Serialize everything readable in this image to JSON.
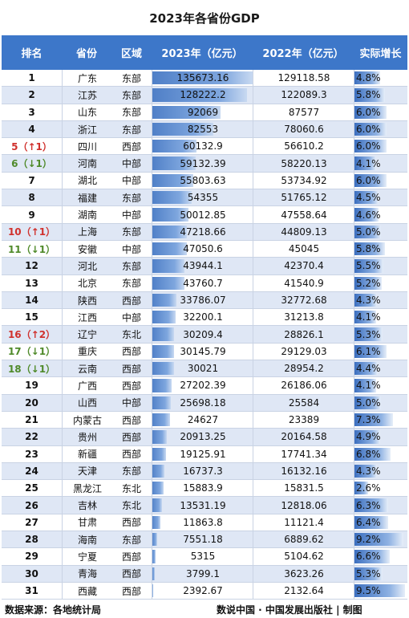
{
  "title": "2023年各省份GDP",
  "headers": {
    "rank": "排名",
    "province": "省份",
    "region": "区域",
    "gdp2023": "2023年（亿元）",
    "gdp2022": "2022年（亿元）",
    "growth": "实际增长"
  },
  "rows": [
    {
      "rank": "1",
      "province": "广东",
      "region": "东部",
      "gdp2023": "135673.16",
      "gdp2022": "129118.58",
      "growth": "4.8%",
      "v23": 135673.16,
      "g": 4.8,
      "change": ""
    },
    {
      "rank": "2",
      "province": "江苏",
      "region": "东部",
      "gdp2023": "128222.2",
      "gdp2022": "122089.3",
      "growth": "5.8%",
      "v23": 128222.2,
      "g": 5.8,
      "change": ""
    },
    {
      "rank": "3",
      "province": "山东",
      "region": "东部",
      "gdp2023": "92069",
      "gdp2022": "87577",
      "growth": "6.0%",
      "v23": 92069,
      "g": 6.0,
      "change": ""
    },
    {
      "rank": "4",
      "province": "浙江",
      "region": "东部",
      "gdp2023": "82553",
      "gdp2022": "78060.6",
      "growth": "6.0%",
      "v23": 82553,
      "g": 6.0,
      "change": ""
    },
    {
      "rank": "5（↑1）",
      "province": "四川",
      "region": "西部",
      "gdp2023": "60132.9",
      "gdp2022": "56610.2",
      "growth": "6.0%",
      "v23": 60132.9,
      "g": 6.0,
      "change": "up"
    },
    {
      "rank": "6（↓1）",
      "province": "河南",
      "region": "中部",
      "gdp2023": "59132.39",
      "gdp2022": "58220.13",
      "growth": "4.1%",
      "v23": 59132.39,
      "g": 4.1,
      "change": "down"
    },
    {
      "rank": "7",
      "province": "湖北",
      "region": "中部",
      "gdp2023": "55803.63",
      "gdp2022": "53734.92",
      "growth": "6.0%",
      "v23": 55803.63,
      "g": 6.0,
      "change": ""
    },
    {
      "rank": "8",
      "province": "福建",
      "region": "东部",
      "gdp2023": "54355",
      "gdp2022": "51765.12",
      "growth": "4.5%",
      "v23": 54355,
      "g": 4.5,
      "change": ""
    },
    {
      "rank": "9",
      "province": "湖南",
      "region": "中部",
      "gdp2023": "50012.85",
      "gdp2022": "47558.64",
      "growth": "4.6%",
      "v23": 50012.85,
      "g": 4.6,
      "change": ""
    },
    {
      "rank": "10（↑1）",
      "province": "上海",
      "region": "东部",
      "gdp2023": "47218.66",
      "gdp2022": "44809.13",
      "growth": "5.0%",
      "v23": 47218.66,
      "g": 5.0,
      "change": "up"
    },
    {
      "rank": "11（↓1）",
      "province": "安徽",
      "region": "中部",
      "gdp2023": "47050.6",
      "gdp2022": "45045",
      "growth": "5.8%",
      "v23": 47050.6,
      "g": 5.8,
      "change": "down"
    },
    {
      "rank": "12",
      "province": "河北",
      "region": "东部",
      "gdp2023": "43944.1",
      "gdp2022": "42370.4",
      "growth": "5.5%",
      "v23": 43944.1,
      "g": 5.5,
      "change": ""
    },
    {
      "rank": "13",
      "province": "北京",
      "region": "东部",
      "gdp2023": "43760.7",
      "gdp2022": "41540.9",
      "growth": "5.2%",
      "v23": 43760.7,
      "g": 5.2,
      "change": ""
    },
    {
      "rank": "14",
      "province": "陕西",
      "region": "西部",
      "gdp2023": "33786.07",
      "gdp2022": "32772.68",
      "growth": "4.3%",
      "v23": 33786.07,
      "g": 4.3,
      "change": ""
    },
    {
      "rank": "15",
      "province": "江西",
      "region": "中部",
      "gdp2023": "32200.1",
      "gdp2022": "31213.8",
      "growth": "4.1%",
      "v23": 32200.1,
      "g": 4.1,
      "change": ""
    },
    {
      "rank": "16（↑2）",
      "province": "辽宁",
      "region": "东北",
      "gdp2023": "30209.4",
      "gdp2022": "28826.1",
      "growth": "5.3%",
      "v23": 30209.4,
      "g": 5.3,
      "change": "up"
    },
    {
      "rank": "17（↓1）",
      "province": "重庆",
      "region": "西部",
      "gdp2023": "30145.79",
      "gdp2022": "29129.03",
      "growth": "6.1%",
      "v23": 30145.79,
      "g": 6.1,
      "change": "down"
    },
    {
      "rank": "18（↓1）",
      "province": "云南",
      "region": "西部",
      "gdp2023": "30021",
      "gdp2022": "28954.2",
      "growth": "4.4%",
      "v23": 30021,
      "g": 4.4,
      "change": "down"
    },
    {
      "rank": "19",
      "province": "广西",
      "region": "西部",
      "gdp2023": "27202.39",
      "gdp2022": "26186.06",
      "growth": "4.1%",
      "v23": 27202.39,
      "g": 4.1,
      "change": ""
    },
    {
      "rank": "20",
      "province": "山西",
      "region": "中部",
      "gdp2023": "25698.18",
      "gdp2022": "25584",
      "growth": "5.0%",
      "v23": 25698.18,
      "g": 5.0,
      "change": ""
    },
    {
      "rank": "21",
      "province": "内蒙古",
      "region": "西部",
      "gdp2023": "24627",
      "gdp2022": "23389",
      "growth": "7.3%",
      "v23": 24627,
      "g": 7.3,
      "change": ""
    },
    {
      "rank": "22",
      "province": "贵州",
      "region": "西部",
      "gdp2023": "20913.25",
      "gdp2022": "20164.58",
      "growth": "4.9%",
      "v23": 20913.25,
      "g": 4.9,
      "change": ""
    },
    {
      "rank": "23",
      "province": "新疆",
      "region": "西部",
      "gdp2023": "19125.91",
      "gdp2022": "17741.34",
      "growth": "6.8%",
      "v23": 19125.91,
      "g": 6.8,
      "change": ""
    },
    {
      "rank": "24",
      "province": "天津",
      "region": "东部",
      "gdp2023": "16737.3",
      "gdp2022": "16132.16",
      "growth": "4.3%",
      "v23": 16737.3,
      "g": 4.3,
      "change": ""
    },
    {
      "rank": "25",
      "province": "黑龙江",
      "region": "东北",
      "gdp2023": "15883.9",
      "gdp2022": "15831.5",
      "growth": "2.6%",
      "v23": 15883.9,
      "g": 2.6,
      "change": ""
    },
    {
      "rank": "26",
      "province": "吉林",
      "region": "东北",
      "gdp2023": "13531.19",
      "gdp2022": "12818.06",
      "growth": "6.3%",
      "v23": 13531.19,
      "g": 6.3,
      "change": ""
    },
    {
      "rank": "27",
      "province": "甘肃",
      "region": "西部",
      "gdp2023": "11863.8",
      "gdp2022": "11121.4",
      "growth": "6.4%",
      "v23": 11863.8,
      "g": 6.4,
      "change": ""
    },
    {
      "rank": "28",
      "province": "海南",
      "region": "东部",
      "gdp2023": "7551.18",
      "gdp2022": "6889.62",
      "growth": "9.2%",
      "v23": 7551.18,
      "g": 9.2,
      "change": ""
    },
    {
      "rank": "29",
      "province": "宁夏",
      "region": "西部",
      "gdp2023": "5315",
      "gdp2022": "5104.62",
      "growth": "6.6%",
      "v23": 5315,
      "g": 6.6,
      "change": ""
    },
    {
      "rank": "30",
      "province": "青海",
      "region": "西部",
      "gdp2023": "3799.1",
      "gdp2022": "3623.26",
      "growth": "5.3%",
      "v23": 3799.1,
      "g": 5.3,
      "change": ""
    },
    {
      "rank": "31",
      "province": "西藏",
      "region": "西部",
      "gdp2023": "2392.67",
      "gdp2022": "2132.64",
      "growth": "9.5%",
      "v23": 2392.67,
      "g": 9.5,
      "change": ""
    }
  ],
  "footer": {
    "source": "数据来源：各地统计局",
    "credit": "数说中国 · 中国发展出版社 | 制图"
  },
  "colors": {
    "header_bg": "#3d77c9",
    "rank_up": "#d0312d",
    "rank_down": "#4f8a2a"
  }
}
